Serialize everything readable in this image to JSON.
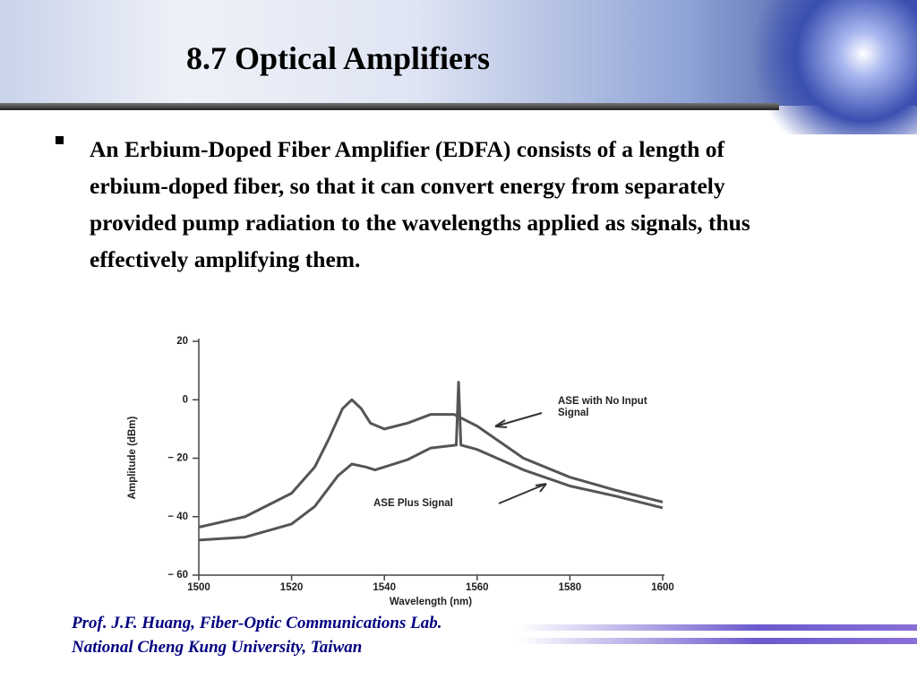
{
  "header": {
    "title": "8.7  Optical Amplifiers"
  },
  "body": {
    "bullet": "An Erbium-Doped Fiber Amplifier (EDFA) consists of a length of erbium-doped fiber, so that it can convert energy from separately provided pump radiation to the wavelengths applied as signals, thus effectively amplifying them."
  },
  "chart_data": {
    "type": "line",
    "xlabel": "Wavelength (nm)",
    "ylabel": "Amplitude (dBm)",
    "xlim": [
      1500,
      1600
    ],
    "ylim": [
      -60,
      20
    ],
    "xticks": [
      1500,
      1520,
      1540,
      1560,
      1580,
      1600
    ],
    "yticks": [
      {
        "value": -60,
        "label": "− 60"
      },
      {
        "value": -40,
        "label": "− 40"
      },
      {
        "value": -20,
        "label": "− 20"
      },
      0,
      20
    ],
    "series": [
      {
        "name": "ASE with No Input Signal",
        "color": "#555555",
        "x": [
          1500,
          1510,
          1520,
          1525,
          1528,
          1531,
          1533,
          1535,
          1537,
          1540,
          1545,
          1550,
          1555,
          1560,
          1570,
          1580,
          1590,
          1600
        ],
        "values": [
          -43.6,
          -40,
          -32,
          -23,
          -13.5,
          -3,
          0,
          -3,
          -8,
          -10,
          -8,
          -5,
          -5,
          -9,
          -20,
          -26.5,
          -31,
          -35
        ]
      },
      {
        "name": "ASE Plus Signal",
        "color": "#555555",
        "x": [
          1500,
          1510,
          1520,
          1525,
          1530,
          1533,
          1536,
          1538,
          1545,
          1550,
          1555.5,
          1556,
          1556.5,
          1560,
          1570,
          1580,
          1590,
          1600
        ],
        "values": [
          -48,
          -47,
          -42.5,
          -36.5,
          -26,
          -22,
          -23,
          -24,
          -20.5,
          -16.5,
          -15.5,
          6,
          -15.5,
          -17,
          -24,
          -29.5,
          -33,
          -37
        ]
      }
    ]
  },
  "footer": {
    "line1": "Prof. J.F. Huang, Fiber-Optic Communications Lab.",
    "line2": "National Cheng Kung University, Taiwan"
  }
}
